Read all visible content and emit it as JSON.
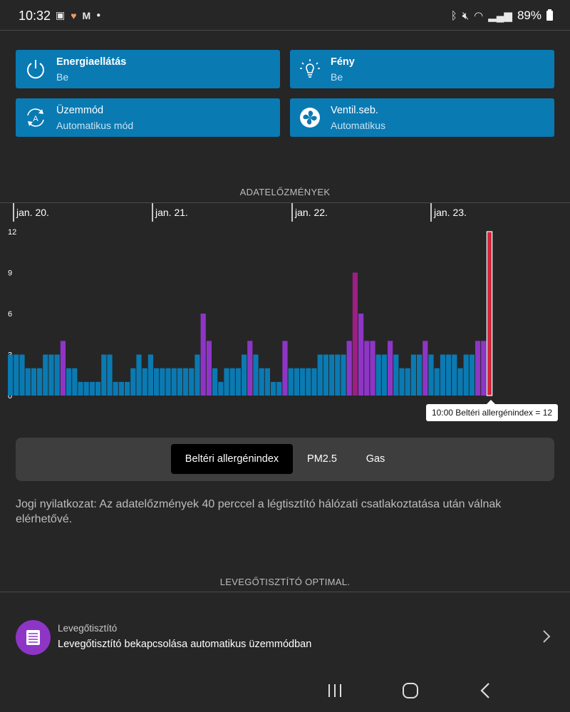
{
  "status_bar": {
    "time": "10:32",
    "left_icons": [
      "gallery-icon",
      "health-heart-icon",
      "gmail-icon",
      "dot-icon"
    ],
    "right_icons": [
      "bluetooth-icon",
      "mute-icon",
      "wifi-icon",
      "signal-icon"
    ],
    "battery": "89%"
  },
  "cards": [
    {
      "title": "Energiaellátás",
      "subtitle": "Be",
      "icon": "power-icon"
    },
    {
      "title": "Fény",
      "subtitle": "Be",
      "icon": "lightbulb-icon"
    },
    {
      "title": "Üzemmód",
      "subtitle": "Automatikus mód",
      "icon": "auto-mode-icon"
    },
    {
      "title": "Ventil.seb.",
      "subtitle": "Automatikus",
      "icon": "fan-icon"
    }
  ],
  "history_title": "ADATELŐZMÉNYEK",
  "chart_data": {
    "type": "bar",
    "date_labels": [
      "jan. 20.",
      "jan. 21.",
      "jan. 22.",
      "jan. 23."
    ],
    "ylim": [
      0,
      12
    ],
    "yticks": [
      "12",
      "9",
      "6",
      "3",
      "0"
    ],
    "values": [
      3,
      3,
      3,
      2,
      2,
      2,
      3,
      3,
      3,
      4,
      2,
      2,
      1,
      1,
      1,
      1,
      3,
      3,
      1,
      1,
      1,
      2,
      3,
      2,
      3,
      2,
      2,
      2,
      2,
      2,
      2,
      2,
      3,
      6,
      4,
      2,
      1,
      2,
      2,
      2,
      3,
      4,
      3,
      2,
      2,
      1,
      1,
      4,
      2,
      2,
      2,
      2,
      2,
      3,
      3,
      3,
      3,
      3,
      4,
      9,
      6,
      4,
      4,
      3,
      3,
      4,
      3,
      2,
      2,
      3,
      3,
      4,
      3,
      2,
      3,
      3,
      3,
      2,
      3,
      3,
      4,
      4,
      12
    ],
    "colors": {
      "normal": "#0a7ab3",
      "elevated": "#8e35c6",
      "high": "#9c1f83",
      "latest": "#d3273d"
    },
    "tooltip": "10:00 Beltéri allergénindex = 12"
  },
  "segments": {
    "active": "Beltéri allergénindex",
    "items": [
      "Beltéri allergénindex",
      "PM2.5",
      "Gas"
    ]
  },
  "disclaimer": "Jogi nyilatkozat: Az adatelőzmények 40 perccel a légtisztító hálózati csatlakoztatása után válnak elérhetővé.",
  "optimal_title": "LEVEGŐTISZTÍTÓ OPTIMAL.",
  "list_item": {
    "title": "Levegőtisztító",
    "subtitle": "Levegőtisztító bekapcsolása automatikus üzemmódban",
    "icon": "purifier-icon"
  },
  "nav": {
    "icons": [
      "recent-apps-icon",
      "home-icon",
      "back-icon"
    ]
  }
}
